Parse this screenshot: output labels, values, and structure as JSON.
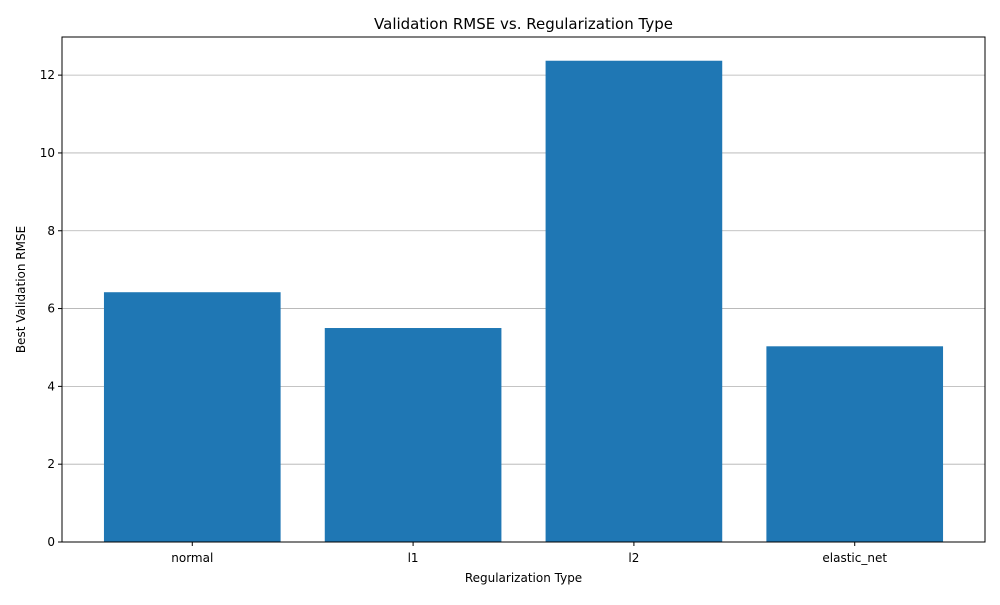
{
  "chart_data": {
    "type": "bar",
    "title": "Validation RMSE vs. Regularization Type",
    "xlabel": "Regularization Type",
    "ylabel": "Best Validation RMSE",
    "categories": [
      "normal",
      "l1",
      "l2",
      "elastic_net"
    ],
    "values": [
      6.42,
      5.5,
      12.37,
      5.03
    ],
    "ylim": [
      0,
      12.98
    ],
    "yticks": [
      0,
      2,
      4,
      6,
      8,
      10,
      12
    ],
    "grid": "y-major",
    "bar_color": "#1f77b4"
  }
}
